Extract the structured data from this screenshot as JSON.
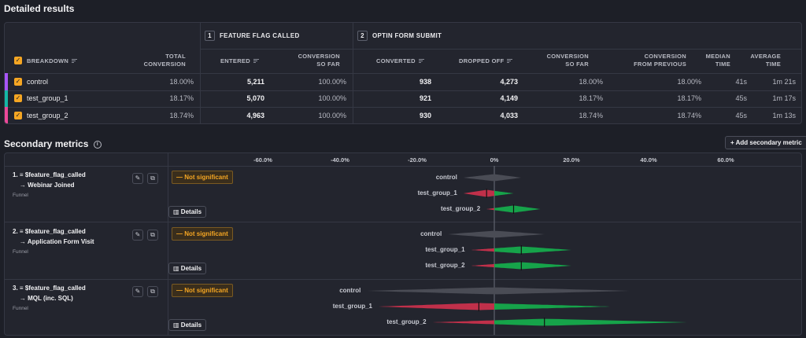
{
  "title": "Detailed results",
  "table": {
    "steps": [
      {
        "num": "1",
        "name": "FEATURE FLAG CALLED"
      },
      {
        "num": "2",
        "name": "OPTIN FORM SUBMIT"
      }
    ],
    "headers": {
      "breakdown": "BREAKDOWN",
      "total_conversion": [
        "TOTAL",
        "CONVERSION"
      ],
      "entered": "ENTERED",
      "conv_so_far_1": [
        "CONVERSION",
        "SO FAR"
      ],
      "converted": "CONVERTED",
      "dropped_off": "DROPPED OFF",
      "conv_so_far_2": [
        "CONVERSION",
        "SO FAR"
      ],
      "conv_from_prev": [
        "CONVERSION",
        "FROM PREVIOUS"
      ],
      "median_time": [
        "MEDIAN",
        "TIME"
      ],
      "avg_time": [
        "AVERAGE",
        "TIME"
      ]
    },
    "rows": [
      {
        "name": "control",
        "color": "#a855f7",
        "total": "18.00%",
        "entered": "5,211",
        "so_far_1": "100.00%",
        "converted": "938",
        "dropped": "4,273",
        "so_far_2": "18.00%",
        "from_prev": "18.00%",
        "median": "41s",
        "avg": "1m 21s"
      },
      {
        "name": "test_group_1",
        "color": "#14b8a6",
        "total": "18.17%",
        "entered": "5,070",
        "so_far_1": "100.00%",
        "converted": "921",
        "dropped": "4,149",
        "so_far_2": "18.17%",
        "from_prev": "18.17%",
        "median": "45s",
        "avg": "1m 17s"
      },
      {
        "name": "test_group_2",
        "color": "#ec4899",
        "total": "18.74%",
        "entered": "4,963",
        "so_far_1": "100.00%",
        "converted": "930",
        "dropped": "4,033",
        "so_far_2": "18.74%",
        "from_prev": "18.74%",
        "median": "45s",
        "avg": "1m 13s"
      }
    ]
  },
  "secondary": {
    "title": "Secondary metrics",
    "add_label": "Add secondary metric",
    "axis_ticks": [
      "-60.0%",
      "-40.0%",
      "-20.0%",
      "0%",
      "20.0%",
      "40.0%",
      "60.0%"
    ],
    "axis_values": [
      -60,
      -40,
      -20,
      0,
      20,
      40,
      60
    ],
    "details_label": "Details",
    "metrics": [
      {
        "num": "1.",
        "event": "$feature_flag_called",
        "target": "Webinar Joined",
        "type": "Funnel",
        "status": "Not significant",
        "variants": [
          {
            "name": "control",
            "low": -8,
            "mid": 0,
            "high": 7
          },
          {
            "name": "test_group_1",
            "low": -8,
            "mid": -2,
            "high": 5
          },
          {
            "name": "test_group_2",
            "low": -2,
            "mid": 5,
            "high": 12
          }
        ]
      },
      {
        "num": "2.",
        "event": "$feature_flag_called",
        "target": "Application Form Visit",
        "type": "Funnel",
        "status": "Not significant",
        "variants": [
          {
            "name": "control",
            "low": -12,
            "mid": 0,
            "high": 13
          },
          {
            "name": "test_group_1",
            "low": -6,
            "mid": 7,
            "high": 20
          },
          {
            "name": "test_group_2",
            "low": -6,
            "mid": 7,
            "high": 20
          }
        ]
      },
      {
        "num": "3.",
        "event": "$feature_flag_called",
        "target": "MQL (inc. SQL)",
        "type": "Funnel",
        "status": "Not significant",
        "variants": [
          {
            "name": "control",
            "low": -33,
            "mid": 0,
            "high": 35
          },
          {
            "name": "test_group_1",
            "low": -30,
            "mid": -4,
            "high": 30
          },
          {
            "name": "test_group_2",
            "low": -16,
            "mid": 13,
            "high": 50
          }
        ]
      }
    ]
  }
}
